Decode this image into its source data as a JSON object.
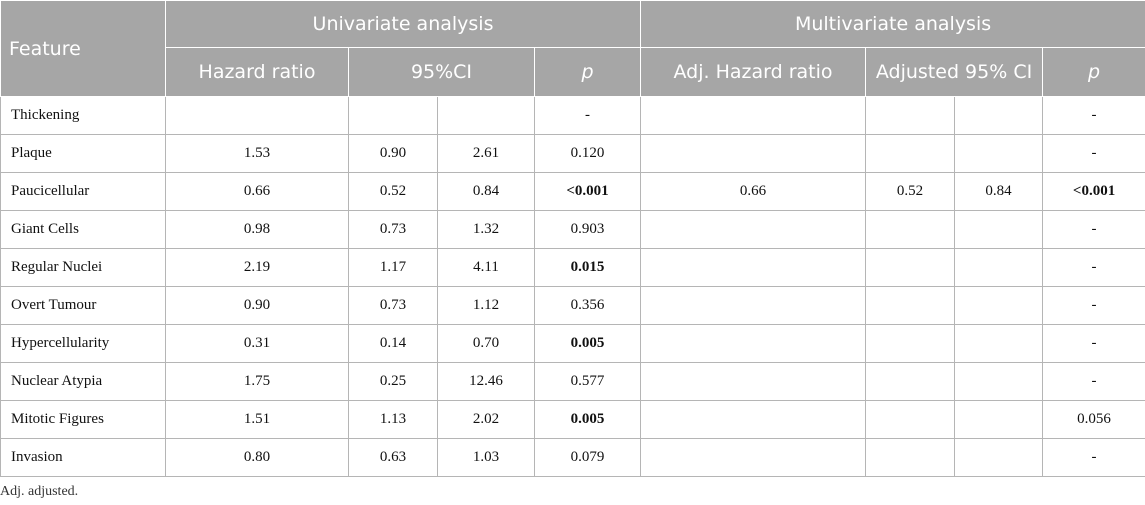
{
  "header": {
    "feature": "Feature",
    "univariate": "Univariate analysis",
    "multivariate": "Multivariate analysis",
    "hazard_ratio": "Hazard ratio",
    "ci95": "95%CI",
    "p": "p",
    "adj_hazard_ratio": "Adj. Hazard ratio",
    "adj_ci95": "Adjusted 95% CI",
    "p2": "p"
  },
  "rows": [
    {
      "feature": "Thickening",
      "hr": "",
      "ci_low": "",
      "ci_high": "",
      "p": "-",
      "adj_hr": "",
      "adj_ci_low": "",
      "adj_ci_high": "",
      "adj_p": "-"
    },
    {
      "feature": "Plaque",
      "hr": "1.53",
      "ci_low": "0.90",
      "ci_high": "2.61",
      "p": "0.120",
      "adj_hr": "",
      "adj_ci_low": "",
      "adj_ci_high": "",
      "adj_p": "-"
    },
    {
      "feature": "Paucicellular",
      "hr": "0.66",
      "ci_low": "0.52",
      "ci_high": "0.84",
      "p": "<0.001",
      "adj_hr": "0.66",
      "adj_ci_low": "0.52",
      "adj_ci_high": "0.84",
      "adj_p": "<0.001"
    },
    {
      "feature": "Giant Cells",
      "hr": "0.98",
      "ci_low": "0.73",
      "ci_high": "1.32",
      "p": "0.903",
      "adj_hr": "",
      "adj_ci_low": "",
      "adj_ci_high": "",
      "adj_p": "-"
    },
    {
      "feature": "Regular Nuclei",
      "hr": "2.19",
      "ci_low": "1.17",
      "ci_high": "4.11",
      "p": "0.015",
      "adj_hr": "",
      "adj_ci_low": "",
      "adj_ci_high": "",
      "adj_p": "-"
    },
    {
      "feature": "Overt Tumour",
      "hr": "0.90",
      "ci_low": "0.73",
      "ci_high": "1.12",
      "p": "0.356",
      "adj_hr": "",
      "adj_ci_low": "",
      "adj_ci_high": "",
      "adj_p": "-"
    },
    {
      "feature": "Hypercellularity",
      "hr": "0.31",
      "ci_low": "0.14",
      "ci_high": "0.70",
      "p": "0.005",
      "adj_hr": "",
      "adj_ci_low": "",
      "adj_ci_high": "",
      "adj_p": "-"
    },
    {
      "feature": "Nuclear Atypia",
      "hr": "1.75",
      "ci_low": "0.25",
      "ci_high": "12.46",
      "p": "0.577",
      "adj_hr": "",
      "adj_ci_low": "",
      "adj_ci_high": "",
      "adj_p": "-"
    },
    {
      "feature": "Mitotic Figures",
      "hr": "1.51",
      "ci_low": "1.13",
      "ci_high": "2.02",
      "p": "0.005",
      "adj_hr": "",
      "adj_ci_low": "",
      "adj_ci_high": "",
      "adj_p": "0.056"
    },
    {
      "feature": "Invasion",
      "hr": "0.80",
      "ci_low": "0.63",
      "ci_high": "1.03",
      "p": "0.079",
      "adj_hr": "",
      "adj_ci_low": "",
      "adj_ci_high": "",
      "adj_p": "-"
    }
  ],
  "bold_p": [
    "<0.001",
    "0.015",
    "0.005"
  ],
  "footnote": "Adj. adjusted.",
  "colors": {
    "header_bg": "#a6a6a6",
    "header_text": "#ffffff",
    "grid": "#b5b5b5"
  }
}
